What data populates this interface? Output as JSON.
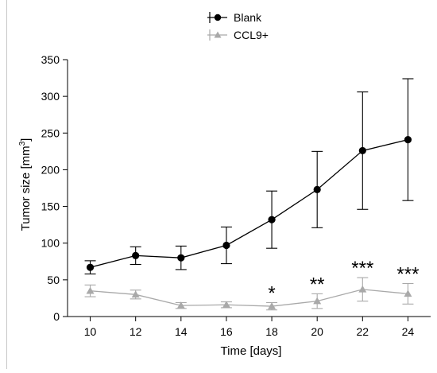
{
  "chart_data": {
    "type": "line",
    "xlabel": "Time [days]",
    "ylabel": "Tumor size [mm³]",
    "x": [
      10,
      12,
      14,
      16,
      18,
      20,
      22,
      24
    ],
    "xlim": [
      9,
      25
    ],
    "ylim": [
      0,
      350
    ],
    "x_ticks": [
      10,
      12,
      14,
      16,
      18,
      20,
      22,
      24
    ],
    "y_ticks": [
      0,
      50,
      100,
      150,
      200,
      250,
      300,
      350
    ],
    "grid": false,
    "legend_position": "top-center",
    "series": [
      {
        "name": "Blank",
        "color": "#000000",
        "marker": "circle",
        "values": [
          67,
          83,
          80,
          97,
          132,
          173,
          226,
          241
        ],
        "error": [
          9,
          12,
          16,
          25,
          39,
          52,
          80,
          83
        ]
      },
      {
        "name": "CCL9+",
        "color": "#a9a9a9",
        "marker": "triangle",
        "values": [
          35,
          30,
          15,
          16,
          14,
          21,
          37,
          31
        ],
        "error": [
          8,
          6,
          4,
          4,
          5,
          10,
          16,
          14
        ]
      }
    ],
    "annotations": [
      {
        "x": 18,
        "text": "*"
      },
      {
        "x": 20,
        "text": "**"
      },
      {
        "x": 22,
        "text": "***"
      },
      {
        "x": 24,
        "text": "***"
      }
    ]
  }
}
